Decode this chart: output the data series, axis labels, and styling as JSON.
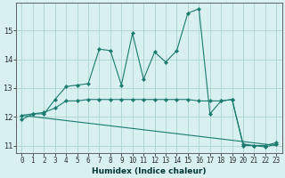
{
  "title": "",
  "xlabel": "Humidex (Indice chaleur)",
  "ylabel": "",
  "background_color": "#d8f0f0",
  "grid_color": "#aed4d4",
  "line_color": "#1a7a6e",
  "line1_x": [
    0,
    1,
    2,
    3,
    4,
    5,
    6,
    7,
    8,
    9,
    10,
    11,
    12,
    13,
    14,
    15,
    16,
    17,
    18,
    19,
    20,
    21,
    22,
    23
  ],
  "line1_y": [
    11.9,
    12.1,
    12.1,
    12.6,
    13.05,
    13.1,
    13.15,
    14.35,
    14.3,
    13.1,
    14.9,
    13.3,
    14.25,
    13.9,
    14.3,
    15.6,
    15.75,
    12.1,
    12.55,
    12.6,
    11.0,
    11.0,
    10.95,
    11.05
  ],
  "line2_x": [
    0,
    1,
    2,
    3,
    4,
    5,
    6,
    7,
    8,
    9,
    10,
    11,
    12,
    13,
    14,
    15,
    16,
    17,
    18,
    19,
    20,
    21,
    22,
    23
  ],
  "line2_y": [
    12.05,
    12.1,
    12.15,
    12.3,
    12.55,
    12.55,
    12.6,
    12.6,
    12.6,
    12.6,
    12.6,
    12.6,
    12.6,
    12.6,
    12.6,
    12.6,
    12.55,
    12.55,
    12.55,
    12.6,
    11.05,
    11.0,
    11.0,
    11.1
  ],
  "line3_x": [
    0,
    23
  ],
  "line3_y": [
    12.05,
    11.0
  ],
  "ylim": [
    10.75,
    15.95
  ],
  "yticks": [
    11,
    12,
    13,
    14,
    15
  ],
  "xlim": [
    -0.5,
    23.5
  ],
  "xticks": [
    0,
    1,
    2,
    3,
    4,
    5,
    6,
    7,
    8,
    9,
    10,
    11,
    12,
    13,
    14,
    15,
    16,
    17,
    18,
    19,
    20,
    21,
    22,
    23
  ],
  "xlabel_fontsize": 6.5,
  "tick_fontsize": 5.5,
  "ytick_fontsize": 6.0
}
